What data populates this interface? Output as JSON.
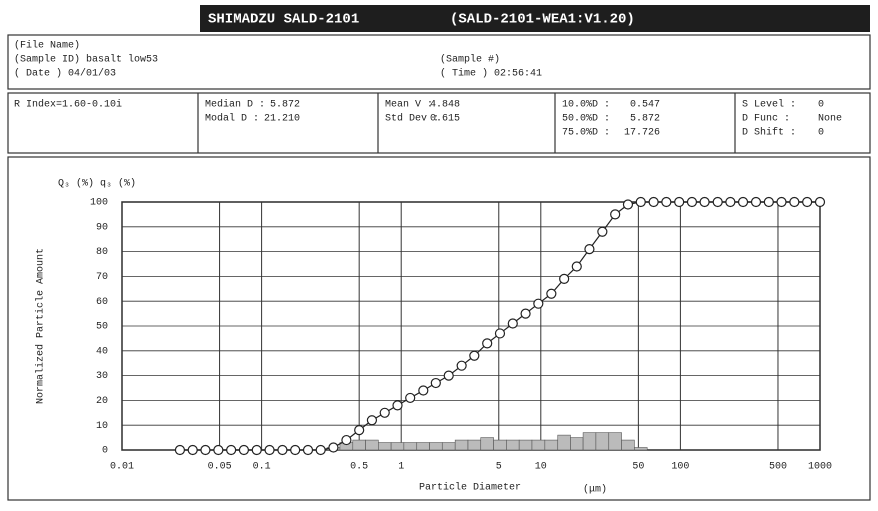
{
  "header": {
    "title": "SHIMADZU SALD-2101",
    "version": "(SALD-2101-WEA1:V1.20)"
  },
  "sample": {
    "file_name": "(File Name)",
    "sample_id": "(Sample ID) basalt low53",
    "date": "( Date ) 04/01/03",
    "sample_no": "(Sample #)",
    "time": "( Time ) 02:56:41"
  },
  "stats": {
    "r_index": "R Index=1.60-0.10i",
    "columns": [
      [
        [
          "Median D :",
          "5.872"
        ],
        [
          "Modal D :",
          "21.210"
        ]
      ],
      [
        [
          "Mean V :",
          "4.848"
        ],
        [
          "Std Dev :",
          "0.615"
        ]
      ],
      [
        [
          "10.0%D :",
          "0.547"
        ],
        [
          "50.0%D :",
          "5.872"
        ],
        [
          "75.0%D :",
          "17.726"
        ]
      ],
      [
        [
          "S Level :",
          "0"
        ],
        [
          "D Func :",
          "None"
        ],
        [
          "D Shift :",
          "0"
        ]
      ]
    ]
  },
  "chart_data": {
    "type": "line",
    "xscale": "log",
    "grid": true,
    "xlabel": "Particle Diameter",
    "xunit": "(μm)",
    "ylabel": "Normalized Particle Amount",
    "x": [
      0.026,
      0.0321,
      0.0396,
      0.049,
      0.0605,
      0.0747,
      0.0923,
      0.114,
      0.141,
      0.174,
      0.215,
      0.265,
      0.327,
      0.405,
      0.5,
      0.617,
      0.762,
      0.941,
      1.16,
      1.44,
      1.77,
      2.19,
      2.71,
      3.34,
      4.13,
      5.1,
      6.3,
      7.78,
      9.6,
      11.9,
      14.7,
      18.1,
      22.3,
      27.6,
      34.1,
      42.1,
      52,
      64.3,
      79.3,
      98,
      121,
      149,
      185,
      228,
      281,
      348,
      430,
      530,
      655,
      809,
      1000
    ],
    "series": [
      {
        "name": "Q₃ (%)",
        "type": "line",
        "color": "#222222",
        "values": [
          0,
          0,
          0,
          0,
          0,
          0,
          0,
          0,
          0,
          0,
          0,
          0,
          1,
          4,
          8,
          12,
          15,
          18,
          21,
          24,
          27,
          30,
          34,
          38,
          43,
          47,
          51,
          55,
          59,
          63,
          69,
          74,
          81,
          88,
          95,
          99,
          100,
          100,
          100,
          100,
          100,
          100,
          100,
          100,
          100,
          100,
          100,
          100,
          100,
          100,
          100
        ]
      },
      {
        "name": "q₃ (%)",
        "type": "bar",
        "color": "#bbbbbb",
        "values": [
          0,
          0,
          0,
          0,
          0,
          0,
          0,
          0,
          0,
          0,
          0,
          0,
          1,
          3,
          4,
          4,
          3,
          3,
          3,
          3,
          3,
          3,
          4,
          4,
          5,
          4,
          4,
          4,
          4,
          4,
          6,
          5,
          7,
          7,
          7,
          4,
          1,
          0,
          0,
          0,
          0,
          0,
          0,
          0,
          0,
          0,
          0,
          0,
          0,
          0,
          0
        ]
      }
    ],
    "xlim": [
      0.01,
      1000
    ],
    "xticks": [
      0.01,
      0.05,
      0.1,
      0.5,
      1,
      5,
      10,
      50,
      100,
      500,
      1000
    ],
    "ylim": [
      0,
      100
    ],
    "yticks": [
      0,
      10,
      20,
      30,
      40,
      50,
      60,
      70,
      80,
      90,
      100
    ]
  }
}
